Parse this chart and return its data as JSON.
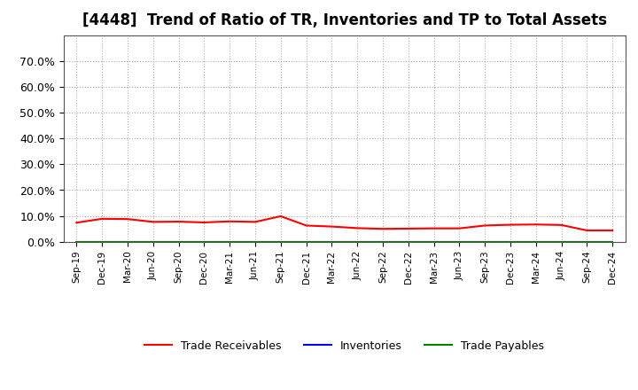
{
  "title": "[4448]  Trend of Ratio of TR, Inventories and TP to Total Assets",
  "x_labels": [
    "Sep-19",
    "Dec-19",
    "Mar-20",
    "Jun-20",
    "Sep-20",
    "Dec-20",
    "Mar-21",
    "Jun-21",
    "Sep-21",
    "Dec-21",
    "Mar-22",
    "Jun-22",
    "Sep-22",
    "Dec-22",
    "Mar-23",
    "Jun-23",
    "Sep-23",
    "Dec-23",
    "Mar-24",
    "Jun-24",
    "Sep-24",
    "Dec-24"
  ],
  "trade_receivables": [
    0.074,
    0.089,
    0.088,
    0.077,
    0.078,
    0.075,
    0.079,
    0.077,
    0.099,
    0.063,
    0.059,
    0.053,
    0.05,
    0.051,
    0.052,
    0.052,
    0.063,
    0.066,
    0.067,
    0.065,
    0.044,
    0.044
  ],
  "inventories": [
    0.0,
    0.0,
    0.0,
    0.0,
    0.0,
    0.0,
    0.0,
    0.0,
    0.0,
    0.0,
    0.0,
    0.0,
    0.0,
    0.0,
    0.0,
    0.0,
    0.0,
    0.0,
    0.0,
    0.0,
    0.0,
    0.0
  ],
  "trade_payables": [
    0.0,
    0.0,
    0.0,
    0.0,
    0.0,
    0.0,
    0.0,
    0.0,
    0.0,
    0.0,
    0.0,
    0.0,
    0.0,
    0.0,
    0.0,
    0.0,
    0.0,
    0.0,
    0.0,
    0.0,
    0.0,
    0.0
  ],
  "tr_color": "#ff0000",
  "inv_color": "#0000ff",
  "tp_color": "#008000",
  "ylim": [
    0.0,
    0.8
  ],
  "yticks": [
    0.0,
    0.1,
    0.2,
    0.3,
    0.4,
    0.5,
    0.6,
    0.7
  ],
  "ytick_labels": [
    "0.0%",
    "10.0%",
    "20.0%",
    "30.0%",
    "40.0%",
    "50.0%",
    "60.0%",
    "70.0%"
  ],
  "background_color": "#ffffff",
  "plot_bg_color": "#ffffff",
  "grid_color": "#aaaaaa",
  "title_fontsize": 12,
  "legend_labels": [
    "Trade Receivables",
    "Inventories",
    "Trade Payables"
  ]
}
